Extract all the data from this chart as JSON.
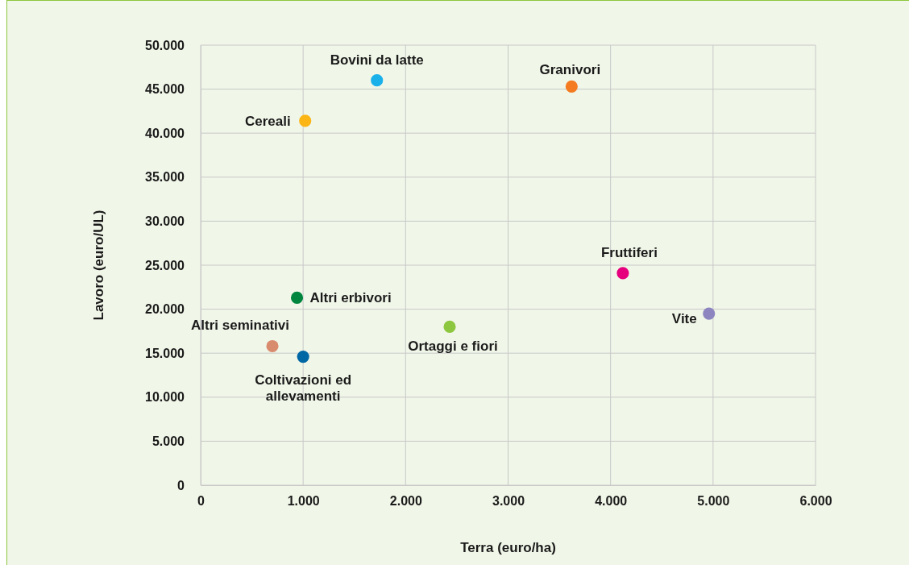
{
  "chart_data": {
    "type": "scatter",
    "xlabel": "Terra (euro/ha)",
    "ylabel": "Lavoro (euro/UL)",
    "xlim": [
      0,
      6000
    ],
    "ylim": [
      0,
      50000
    ],
    "xticks": [
      {
        "value": 0,
        "label": "0"
      },
      {
        "value": 1000,
        "label": "1.000"
      },
      {
        "value": 2000,
        "label": "2.000"
      },
      {
        "value": 3000,
        "label": "3.000"
      },
      {
        "value": 4000,
        "label": "4.000"
      },
      {
        "value": 5000,
        "label": "5.000"
      },
      {
        "value": 6000,
        "label": "6.000"
      }
    ],
    "yticks": [
      {
        "value": 0,
        "label": "0"
      },
      {
        "value": 5000,
        "label": "5.000"
      },
      {
        "value": 10000,
        "label": "10.000"
      },
      {
        "value": 15000,
        "label": "15.000"
      },
      {
        "value": 20000,
        "label": "20.000"
      },
      {
        "value": 25000,
        "label": "25.000"
      },
      {
        "value": 30000,
        "label": "30.000"
      },
      {
        "value": 35000,
        "label": "35.000"
      },
      {
        "value": 40000,
        "label": "40.000"
      },
      {
        "value": 45000,
        "label": "45.000"
      },
      {
        "value": 50000,
        "label": "50.000"
      }
    ],
    "grid": true,
    "marker": "circle",
    "series": [
      {
        "name": "Bovini da latte",
        "color": "#1ab0ea",
        "x": [
          1720
        ],
        "values": [
          46000
        ]
      },
      {
        "name": "Granivori",
        "color": "#f47b20",
        "x": [
          3620
        ],
        "values": [
          45300
        ]
      },
      {
        "name": "Cereali",
        "color": "#fbb515",
        "x": [
          1020
        ],
        "values": [
          41400
        ]
      },
      {
        "name": "Fruttiferi",
        "color": "#e6007e",
        "x": [
          4120
        ],
        "values": [
          24100
        ]
      },
      {
        "name": "Vite",
        "color": "#8c85c0",
        "x": [
          4960
        ],
        "values": [
          19500
        ]
      },
      {
        "name": "Altri erbivori",
        "color": "#00853e",
        "x": [
          940
        ],
        "values": [
          21300
        ]
      },
      {
        "name": "Ortaggi e fiori",
        "color": "#8dc63f",
        "x": [
          2430
        ],
        "values": [
          18000
        ]
      },
      {
        "name": "Altri seminativi",
        "color": "#d98b6e",
        "x": [
          700
        ],
        "values": [
          15800
        ]
      },
      {
        "name": "Coltivazioni ed allevamenti",
        "color": "#0067a5",
        "x": [
          1000
        ],
        "values": [
          14600
        ]
      }
    ]
  }
}
